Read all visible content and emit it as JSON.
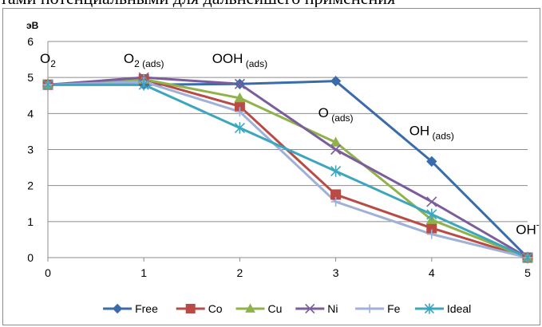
{
  "top_text": "тами потенциальными для дальнейшего применения",
  "chart_data": {
    "type": "line",
    "ylabel": "эВ",
    "xlabel": "",
    "xlim": [
      0,
      5
    ],
    "ylim": [
      0,
      6
    ],
    "x_ticks": [
      "0",
      "1",
      "2",
      "3",
      "4",
      "5"
    ],
    "y_ticks": [
      "0",
      "1",
      "2",
      "3",
      "4",
      "5",
      "6"
    ],
    "grid": "horizontal",
    "legend": "bottom",
    "annotations": [
      {
        "base": "O",
        "sub": "2",
        "sup": "",
        "x": 0,
        "y": 5.4
      },
      {
        "base": "O",
        "sub": "2 (ads)",
        "sup": "",
        "x": 1,
        "y": 5.4
      },
      {
        "base": "OOH",
        "sub": " (ads)",
        "sup": "",
        "x": 2,
        "y": 5.4
      },
      {
        "base": "O",
        "sub": " (ads)",
        "sup": "",
        "x": 3,
        "y": 3.9
      },
      {
        "base": "OH",
        "sub": " (ads)",
        "sup": "",
        "x": 4,
        "y": 3.4
      },
      {
        "base": "OH",
        "sub": "",
        "sup": "-",
        "x": 5,
        "y": 0.65
      }
    ],
    "series": [
      {
        "name": "Free",
        "color": "#3a6cac",
        "marker": "diamond",
        "values": [
          4.8,
          4.8,
          4.82,
          4.9,
          2.67,
          0.0
        ]
      },
      {
        "name": "Co",
        "color": "#b94a45",
        "marker": "square",
        "values": [
          4.8,
          4.95,
          4.2,
          1.75,
          0.82,
          0.0
        ]
      },
      {
        "name": "Cu",
        "color": "#8fb34a",
        "marker": "triangle",
        "values": [
          4.8,
          4.95,
          4.43,
          3.2,
          1.05,
          0.0
        ]
      },
      {
        "name": "Ni",
        "color": "#7b5c9c",
        "marker": "x",
        "values": [
          4.8,
          5.0,
          4.82,
          3.0,
          1.55,
          0.0
        ]
      },
      {
        "name": "Fe",
        "color": "#9fb1d9",
        "marker": "plus",
        "values": [
          4.8,
          4.88,
          4.05,
          1.55,
          0.65,
          0.0
        ]
      },
      {
        "name": "Ideal",
        "color": "#3ca6be",
        "marker": "star",
        "values": [
          4.8,
          4.8,
          3.6,
          2.4,
          1.2,
          0.0
        ]
      }
    ]
  }
}
